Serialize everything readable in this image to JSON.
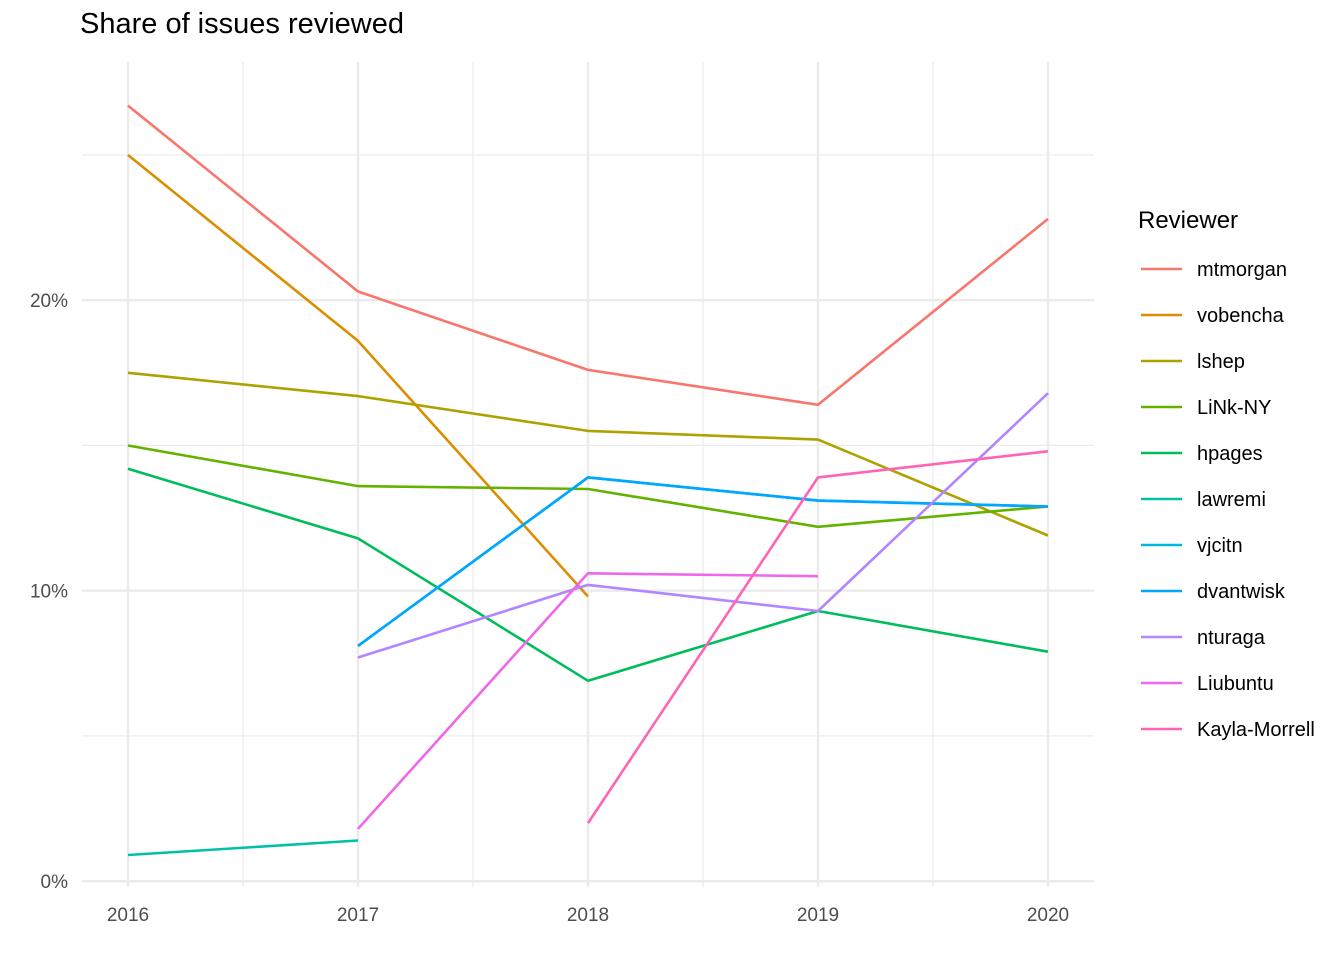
{
  "chart_data": {
    "type": "line",
    "title": "Share of issues reviewed",
    "xlabel": "",
    "ylabel": "",
    "x_ticks": [
      "2016",
      "2017",
      "2018",
      "2019",
      "2020"
    ],
    "y_ticks": [
      {
        "value": 0,
        "label": "0%"
      },
      {
        "value": 10,
        "label": "10%"
      },
      {
        "value": 20,
        "label": "20%"
      }
    ],
    "xlim": [
      2015.8,
      2020.2
    ],
    "ylim": [
      -0.2,
      28.2
    ],
    "grid": true,
    "legend_title": "Reviewer",
    "legend_position": "right",
    "series": [
      {
        "name": "mtmorgan",
        "color": "#F8766D",
        "points": [
          [
            2016,
            26.7
          ],
          [
            2017,
            20.3
          ],
          [
            2018,
            17.6
          ],
          [
            2019,
            16.4
          ],
          [
            2020,
            22.8
          ]
        ]
      },
      {
        "name": "vobencha",
        "color": "#DB8E00",
        "points": [
          [
            2016,
            25.0
          ],
          [
            2017,
            18.6
          ],
          [
            2018,
            9.8
          ]
        ]
      },
      {
        "name": "lshep",
        "color": "#AEA200",
        "points": [
          [
            2016,
            17.5
          ],
          [
            2017,
            16.7
          ],
          [
            2018,
            15.5
          ],
          [
            2019,
            15.2
          ],
          [
            2020,
            11.9
          ]
        ]
      },
      {
        "name": "LiNk-NY",
        "color": "#64B200",
        "points": [
          [
            2016,
            15.0
          ],
          [
            2017,
            13.6
          ],
          [
            2018,
            13.5
          ],
          [
            2019,
            12.2
          ],
          [
            2020,
            12.9
          ]
        ]
      },
      {
        "name": "hpages",
        "color": "#00BD5C",
        "points": [
          [
            2016,
            14.2
          ],
          [
            2017,
            11.8
          ],
          [
            2018,
            6.9
          ],
          [
            2019,
            9.3
          ],
          [
            2020,
            7.9
          ]
        ]
      },
      {
        "name": "lawremi",
        "color": "#00C1A7",
        "points": [
          [
            2016,
            0.9
          ],
          [
            2017,
            1.4
          ]
        ]
      },
      {
        "name": "vjcitn",
        "color": "#00BADE",
        "points": [
          [
            2017,
            8.1
          ],
          [
            2018,
            13.9
          ],
          [
            2019,
            13.1
          ],
          [
            2020,
            12.9
          ]
        ]
      },
      {
        "name": "dvantwisk",
        "color": "#00A6FF",
        "points": [
          [
            2017,
            8.1
          ],
          [
            2018,
            13.9
          ],
          [
            2019,
            13.1
          ],
          [
            2020,
            12.9
          ]
        ]
      },
      {
        "name": "nturaga",
        "color": "#B385FF",
        "points": [
          [
            2017,
            7.7
          ],
          [
            2018,
            10.2
          ],
          [
            2019,
            9.3
          ],
          [
            2020,
            16.8
          ]
        ]
      },
      {
        "name": "Liubuntu",
        "color": "#EF67EB",
        "points": [
          [
            2017,
            1.8
          ],
          [
            2018,
            10.6
          ],
          [
            2019,
            10.5
          ]
        ]
      },
      {
        "name": "Kayla-Morrell",
        "color": "#FF63B6",
        "points": [
          [
            2018,
            2.0
          ],
          [
            2019,
            13.9
          ],
          [
            2020,
            14.8
          ]
        ]
      }
    ]
  }
}
